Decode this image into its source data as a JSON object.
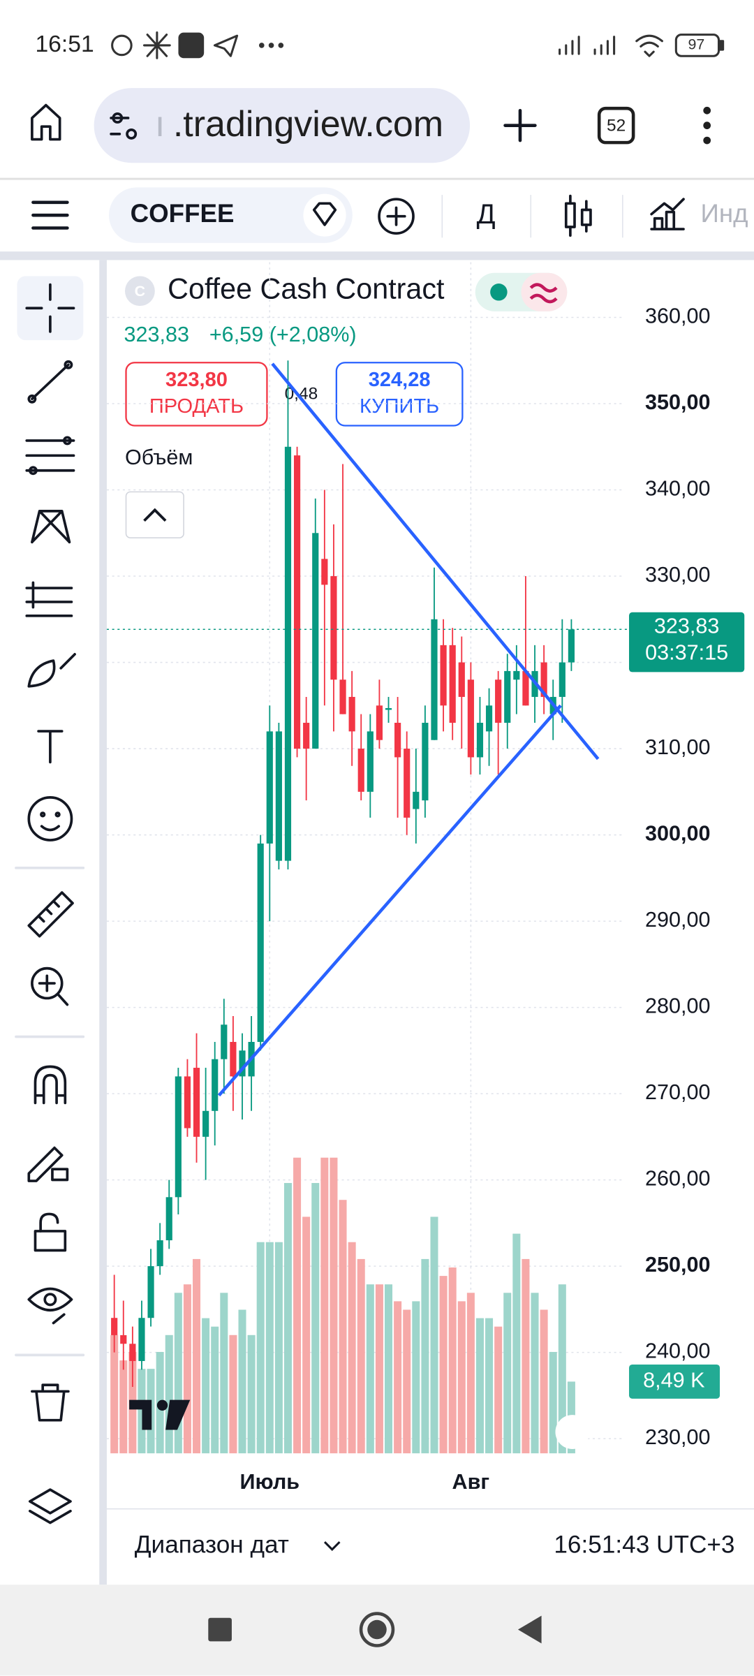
{
  "status_bar": {
    "time": "16:51",
    "battery": "97"
  },
  "browser": {
    "url_prefix": "ı",
    "url": ".tradingview.com",
    "tab_count": "52"
  },
  "toolbar": {
    "symbol": "COFFEE",
    "interval": "Д",
    "indicators": "Инд"
  },
  "header": {
    "badge": "C",
    "title": "Coffee Cash Contract",
    "last": "323,83",
    "change": "+6,59 (+2,08%)",
    "sell_price": "323,80",
    "sell_label": "ПРОДАТЬ",
    "spread": "0,48",
    "buy_price": "324,28",
    "buy_label": "КУПИТЬ",
    "volume_title": "Объём"
  },
  "chart_data": {
    "type": "candlestick",
    "categories": [
      null,
      null,
      null,
      null,
      null,
      null,
      null,
      null,
      null,
      null,
      null,
      null,
      null,
      null,
      null,
      null,
      null,
      "Июль",
      null,
      null,
      null,
      null,
      null,
      null,
      null,
      null,
      null,
      null,
      null,
      null,
      null,
      null,
      null,
      null,
      null,
      null,
      null,
      null,
      null,
      "Авг",
      null,
      null,
      null,
      null,
      null,
      null,
      null,
      null,
      null,
      null,
      null
    ],
    "open": [
      244,
      242,
      241,
      239,
      244,
      250,
      253,
      258,
      272,
      273,
      265,
      268,
      274,
      276,
      272,
      272,
      276,
      299,
      297,
      297,
      344,
      313,
      310,
      332,
      330,
      318,
      316,
      310,
      305,
      315,
      314.5,
      313,
      310,
      303,
      304,
      311,
      322,
      322,
      320,
      318,
      309,
      312,
      318,
      313,
      318,
      319,
      316,
      320,
      314,
      316,
      320
    ],
    "high": [
      249,
      246,
      243,
      246,
      252,
      255,
      260,
      273,
      274,
      277,
      273,
      276,
      281,
      279,
      277,
      279,
      300,
      315,
      313,
      355,
      345,
      316,
      339,
      340,
      336,
      343,
      319,
      314,
      314,
      318,
      316,
      316,
      312,
      310,
      315,
      331,
      325,
      324,
      323,
      320,
      316,
      317,
      319,
      321,
      322,
      330,
      322,
      322,
      318,
      325,
      325
    ],
    "low": [
      240,
      238,
      236,
      238,
      243,
      249,
      252,
      256,
      265,
      262,
      260,
      264,
      270,
      268,
      267,
      268,
      275,
      290,
      296,
      296,
      309,
      304,
      310,
      315,
      312,
      314,
      308,
      304,
      302,
      310,
      313,
      302,
      300,
      299,
      302,
      311,
      312,
      311,
      310,
      307,
      307,
      308,
      307,
      310,
      314,
      315,
      313,
      314,
      311,
      313,
      319
    ],
    "close": [
      242,
      241,
      239,
      244,
      250,
      253,
      258,
      272,
      266,
      265,
      268,
      274,
      278,
      272,
      275,
      276,
      299,
      312,
      312,
      345,
      310,
      310,
      335,
      329,
      318,
      314,
      312,
      305,
      312,
      311,
      314.7,
      309,
      302,
      305,
      313,
      325,
      315,
      313,
      316,
      309,
      313,
      315,
      313,
      319,
      319,
      315,
      319,
      316,
      316,
      320,
      323.83
    ],
    "volume": [
      14,
      11,
      12,
      10,
      10,
      12,
      14,
      19,
      20,
      23,
      16,
      15,
      19,
      14,
      17,
      14,
      25,
      25,
      25,
      32,
      35,
      28,
      32,
      35,
      35,
      30,
      25,
      23,
      20,
      20,
      20,
      18,
      17,
      18,
      23,
      28,
      21,
      22,
      18,
      19,
      16,
      16,
      15,
      19,
      26,
      23,
      19,
      17,
      12,
      20,
      8.49
    ],
    "volume_label": "8,49 K",
    "vlim": [
      0,
      141
    ],
    "ylim": [
      228.3,
      366.4
    ],
    "yticks": [
      {
        "value": 360,
        "label": "360,00"
      },
      {
        "value": 350,
        "label": "350,00"
      },
      {
        "value": 340,
        "label": "340,00"
      },
      {
        "value": 330,
        "label": "330,00"
      },
      {
        "value": 320,
        "label": "320,00"
      },
      {
        "value": 310,
        "label": "310,00"
      },
      {
        "value": 300,
        "label": "300,00"
      },
      {
        "value": 290,
        "label": "290,00"
      },
      {
        "value": 280,
        "label": "280,00"
      },
      {
        "value": 270,
        "label": "270,00"
      },
      {
        "value": 260,
        "label": "260,00"
      },
      {
        "value": 250,
        "label": "250,00"
      },
      {
        "value": 240,
        "label": "240,00"
      },
      {
        "value": 230,
        "label": "230,00"
      }
    ],
    "last_price": {
      "value": 323.83,
      "label": "323,83"
    },
    "countdown": "03:37:15",
    "grid": true,
    "up_color": "#089981",
    "down_color": "#f23645",
    "up_volume_color": "#9dd5cb",
    "down_volume_color": "#f6a9a8"
  },
  "footer": {
    "date_range": "Диапазон дат",
    "clock": "16:51:43 UTC+3"
  }
}
